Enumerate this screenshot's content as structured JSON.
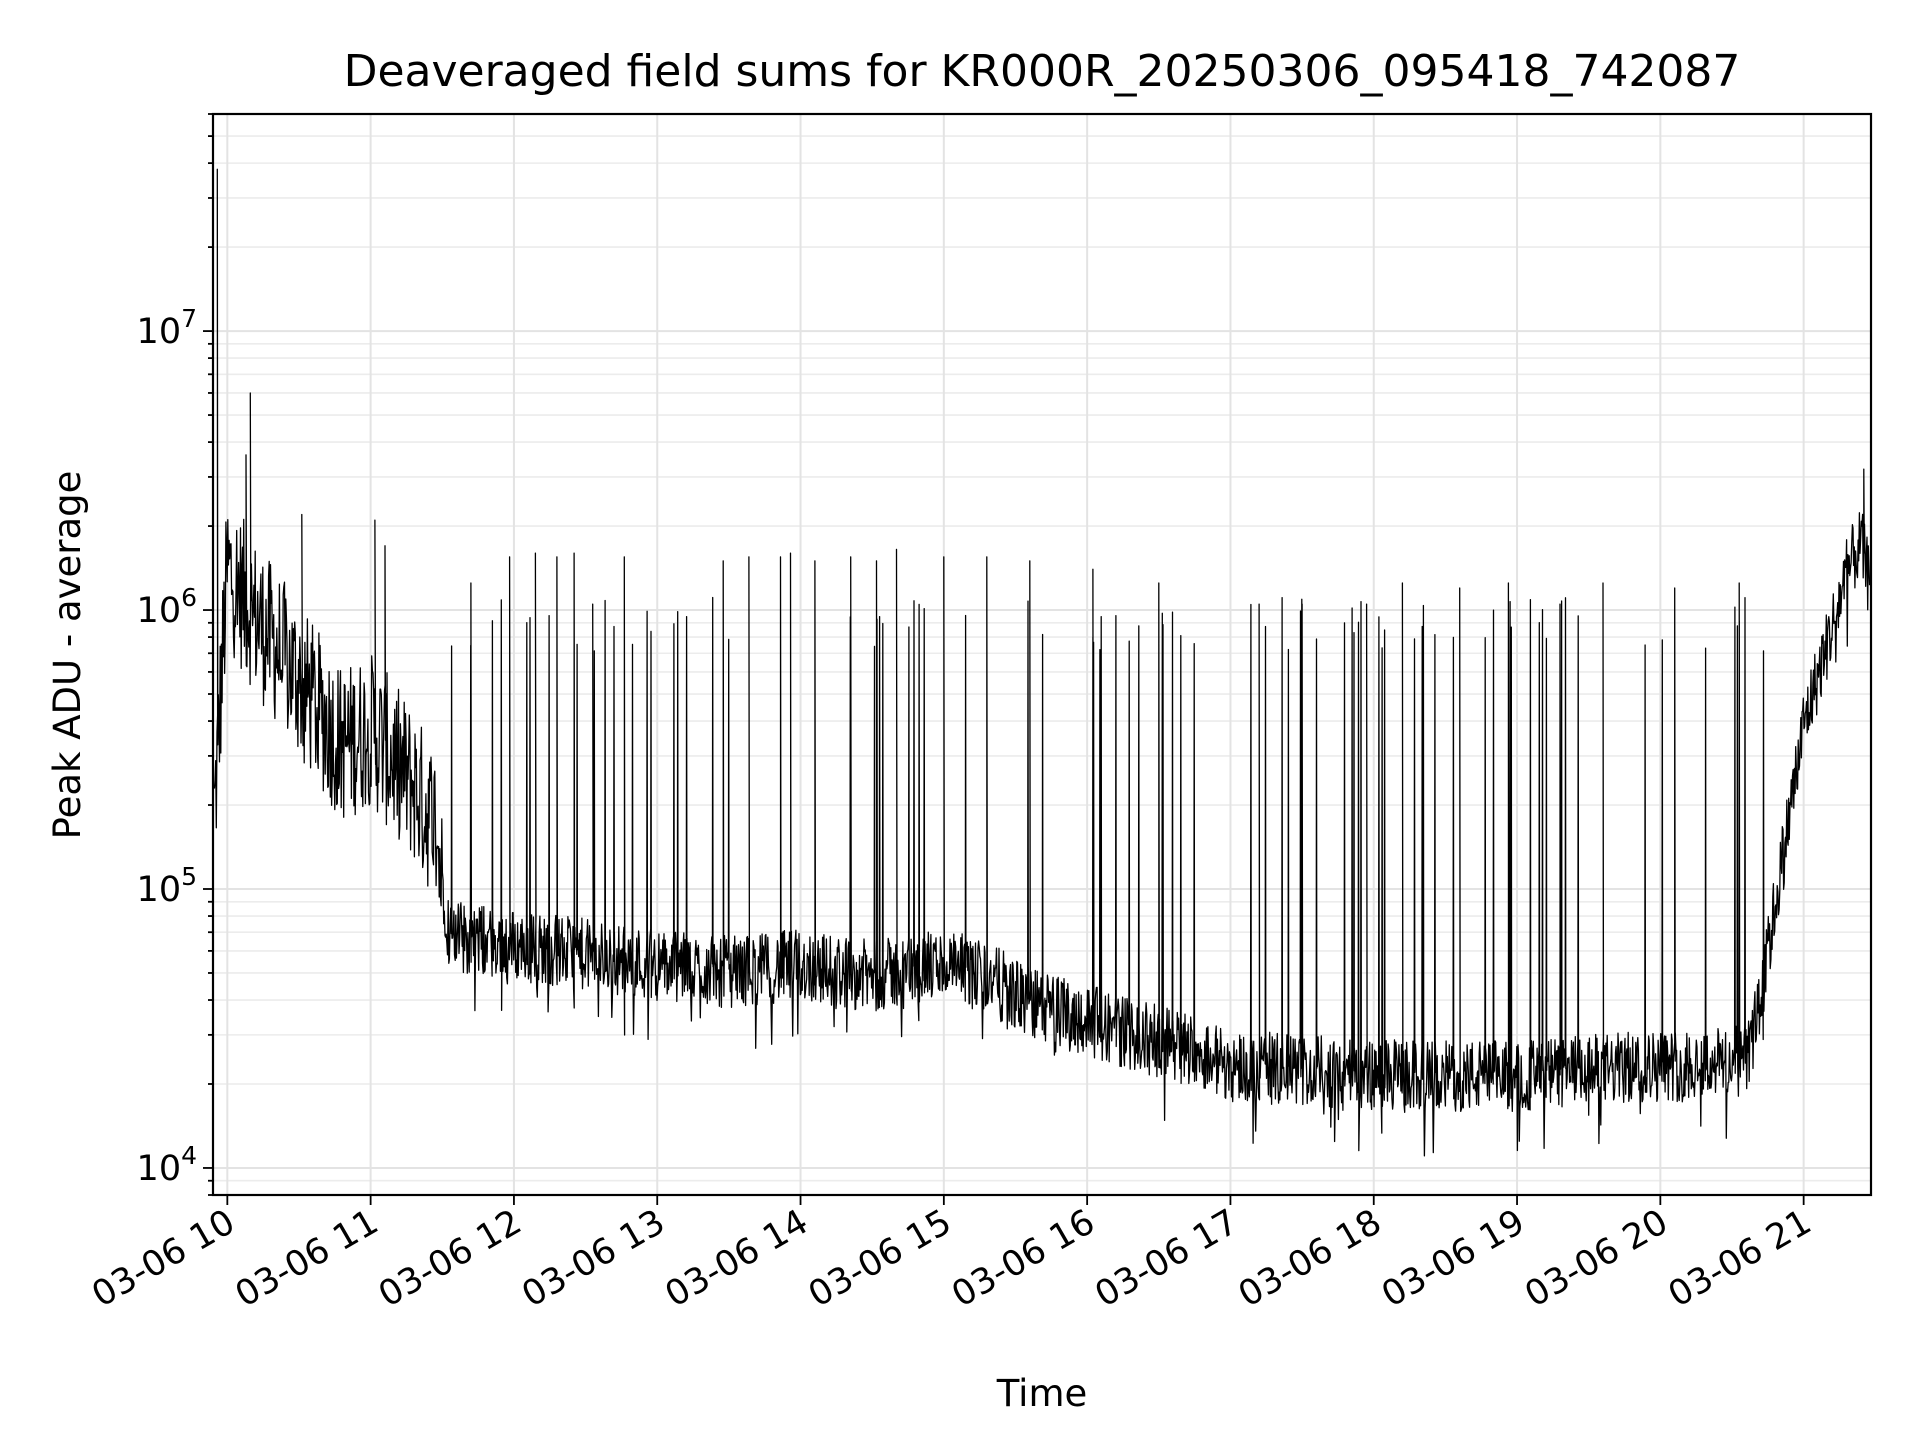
{
  "chart_data": {
    "type": "line",
    "title": "Deaveraged field sums for KR000R_20250306_095418_742087",
    "xlabel": "Time",
    "ylabel": "Peak ADU - average",
    "yscale": "log",
    "ylim": [
      8000,
      60000000
    ],
    "xlim_hours": [
      9.9,
      21.47
    ],
    "grid": true,
    "legend": "none",
    "line_color": "#000000",
    "x_ticks": [
      {
        "hour": 10,
        "label": "03-06 10"
      },
      {
        "hour": 11,
        "label": "03-06 11"
      },
      {
        "hour": 12,
        "label": "03-06 12"
      },
      {
        "hour": 13,
        "label": "03-06 13"
      },
      {
        "hour": 14,
        "label": "03-06 14"
      },
      {
        "hour": 15,
        "label": "03-06 15"
      },
      {
        "hour": 16,
        "label": "03-06 16"
      },
      {
        "hour": 17,
        "label": "03-06 17"
      },
      {
        "hour": 18,
        "label": "03-06 18"
      },
      {
        "hour": 19,
        "label": "03-06 19"
      },
      {
        "hour": 20,
        "label": "03-06 20"
      },
      {
        "hour": 21,
        "label": "03-06 21"
      }
    ],
    "y_ticks": [
      {
        "value": 10000,
        "base": "10",
        "exp": "4"
      },
      {
        "value": 100000,
        "base": "10",
        "exp": "5"
      },
      {
        "value": 1000000,
        "base": "10",
        "exp": "6"
      },
      {
        "value": 10000000,
        "base": "10",
        "exp": "7"
      }
    ],
    "baseline_hours": [
      9.91,
      10.0,
      10.2,
      10.5,
      10.8,
      11.0,
      11.3,
      11.45,
      11.55,
      12.0,
      12.5,
      13.0,
      13.5,
      14.0,
      14.5,
      15.0,
      15.3,
      15.6,
      16.0,
      16.4,
      16.7,
      17.0,
      17.5,
      18.0,
      18.5,
      19.0,
      19.5,
      20.0,
      20.6,
      20.7,
      20.8,
      21.0,
      21.2,
      21.3,
      21.4,
      21.47
    ],
    "baseline_values": [
      200000,
      1500000,
      1000000,
      600000,
      350000,
      400000,
      250000,
      180000,
      70000,
      65000,
      60000,
      55000,
      52000,
      55000,
      50000,
      55000,
      50000,
      40000,
      35000,
      30000,
      28000,
      24000,
      23000,
      22000,
      22000,
      22000,
      23000,
      24000,
      25000,
      40000,
      90000,
      400000,
      900000,
      1400000,
      1800000,
      1200000
    ],
    "spikes": [
      {
        "hour": 9.93,
        "value": 38000000
      },
      {
        "hour": 10.16,
        "value": 6000000
      },
      {
        "hour": 10.13,
        "value": 3600000
      },
      {
        "hour": 10.52,
        "value": 2200000
      },
      {
        "hour": 11.03,
        "value": 2100000
      },
      {
        "hour": 11.1,
        "value": 1700000
      },
      {
        "hour": 11.7,
        "value": 1250000
      },
      {
        "hour": 11.97,
        "value": 1550000
      },
      {
        "hour": 12.15,
        "value": 1600000
      },
      {
        "hour": 12.3,
        "value": 1550000
      },
      {
        "hour": 12.42,
        "value": 1600000
      },
      {
        "hour": 12.55,
        "value": 1050000
      },
      {
        "hour": 12.77,
        "value": 1550000
      },
      {
        "hour": 13.46,
        "value": 1500000
      },
      {
        "hour": 13.64,
        "value": 1550000
      },
      {
        "hour": 13.86,
        "value": 1550000
      },
      {
        "hour": 13.93,
        "value": 1600000
      },
      {
        "hour": 14.1,
        "value": 1500000
      },
      {
        "hour": 14.35,
        "value": 1550000
      },
      {
        "hour": 14.53,
        "value": 1500000
      },
      {
        "hour": 14.67,
        "value": 1650000
      },
      {
        "hour": 15.0,
        "value": 1550000
      },
      {
        "hour": 15.3,
        "value": 1550000
      },
      {
        "hour": 15.6,
        "value": 1500000
      },
      {
        "hour": 16.04,
        "value": 1400000
      },
      {
        "hour": 16.5,
        "value": 1250000
      },
      {
        "hour": 17.2,
        "value": 1050000
      },
      {
        "hour": 17.5,
        "value": 1050000
      },
      {
        "hour": 17.95,
        "value": 1050000
      },
      {
        "hour": 18.2,
        "value": 1250000
      },
      {
        "hour": 18.6,
        "value": 1200000
      },
      {
        "hour": 18.94,
        "value": 1250000
      },
      {
        "hour": 19.3,
        "value": 1050000
      },
      {
        "hour": 19.6,
        "value": 1250000
      },
      {
        "hour": 20.1,
        "value": 1200000
      },
      {
        "hour": 20.55,
        "value": 1250000
      },
      {
        "hour": 21.42,
        "value": 3200000
      }
    ]
  }
}
